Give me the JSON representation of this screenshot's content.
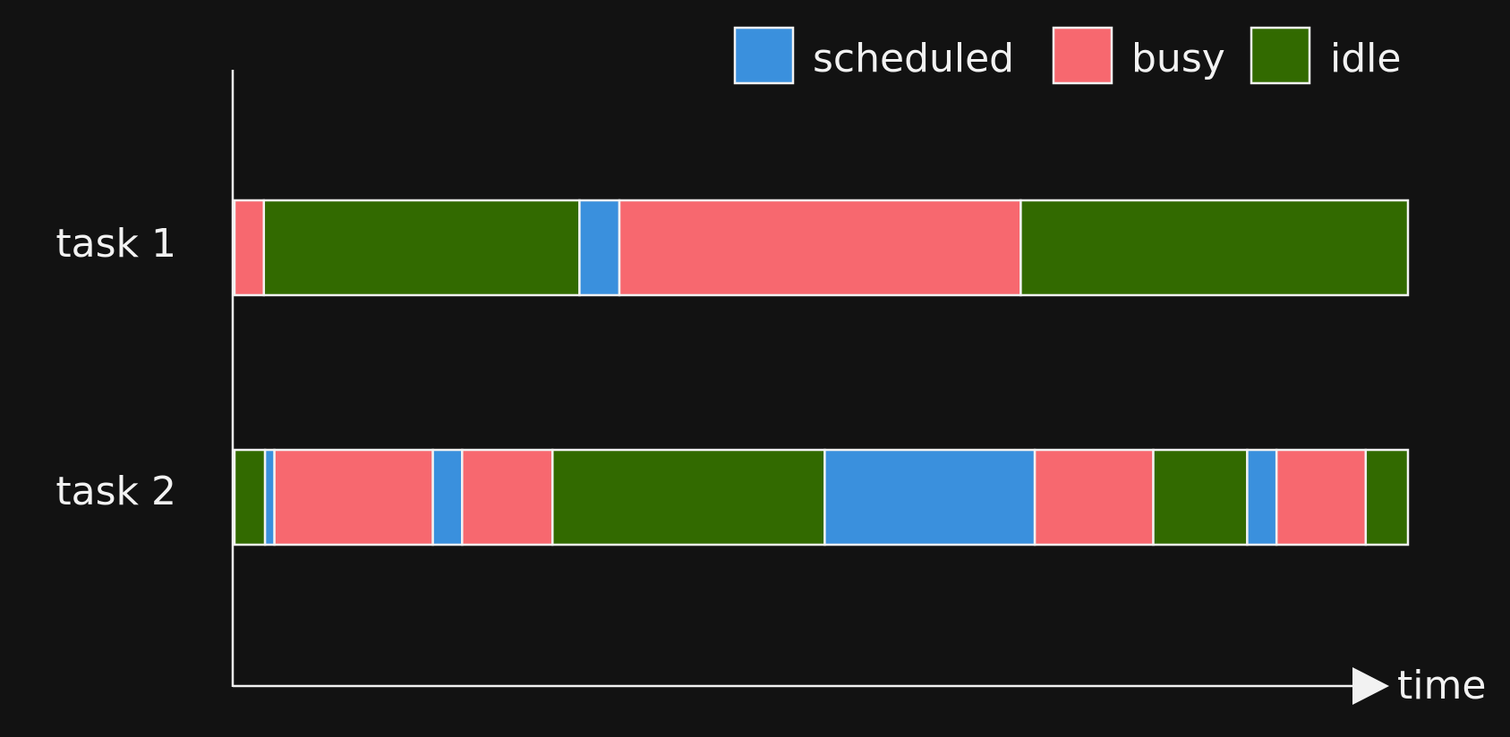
{
  "legend": [
    {
      "key": "scheduled",
      "label": "scheduled",
      "color": "#3a90dd"
    },
    {
      "key": "busy",
      "label": "busy",
      "color": "#f7686f"
    },
    {
      "key": "idle",
      "label": "idle",
      "color": "#326a00"
    }
  ],
  "axis": {
    "time_label": "time"
  },
  "timeline_end": 1.0,
  "tasks": [
    {
      "label": "task 1",
      "segments": [
        {
          "state": "busy",
          "start": 0.0,
          "end": 0.025
        },
        {
          "state": "idle",
          "start": 0.025,
          "end": 0.294
        },
        {
          "state": "scheduled",
          "start": 0.294,
          "end": 0.328
        },
        {
          "state": "busy",
          "start": 0.328,
          "end": 0.67
        },
        {
          "state": "idle",
          "start": 0.67,
          "end": 1.0
        }
      ]
    },
    {
      "label": "task 2",
      "segments": [
        {
          "state": "idle",
          "start": 0.0,
          "end": 0.026
        },
        {
          "state": "scheduled",
          "start": 0.026,
          "end": 0.034
        },
        {
          "state": "busy",
          "start": 0.034,
          "end": 0.169
        },
        {
          "state": "scheduled",
          "start": 0.169,
          "end": 0.194
        },
        {
          "state": "busy",
          "start": 0.194,
          "end": 0.271
        },
        {
          "state": "idle",
          "start": 0.271,
          "end": 0.503
        },
        {
          "state": "scheduled",
          "start": 0.503,
          "end": 0.682
        },
        {
          "state": "busy",
          "start": 0.682,
          "end": 0.783
        },
        {
          "state": "idle",
          "start": 0.783,
          "end": 0.863
        },
        {
          "state": "scheduled",
          "start": 0.863,
          "end": 0.888
        },
        {
          "state": "busy",
          "start": 0.888,
          "end": 0.964
        },
        {
          "state": "idle",
          "start": 0.964,
          "end": 1.0
        }
      ]
    }
  ]
}
